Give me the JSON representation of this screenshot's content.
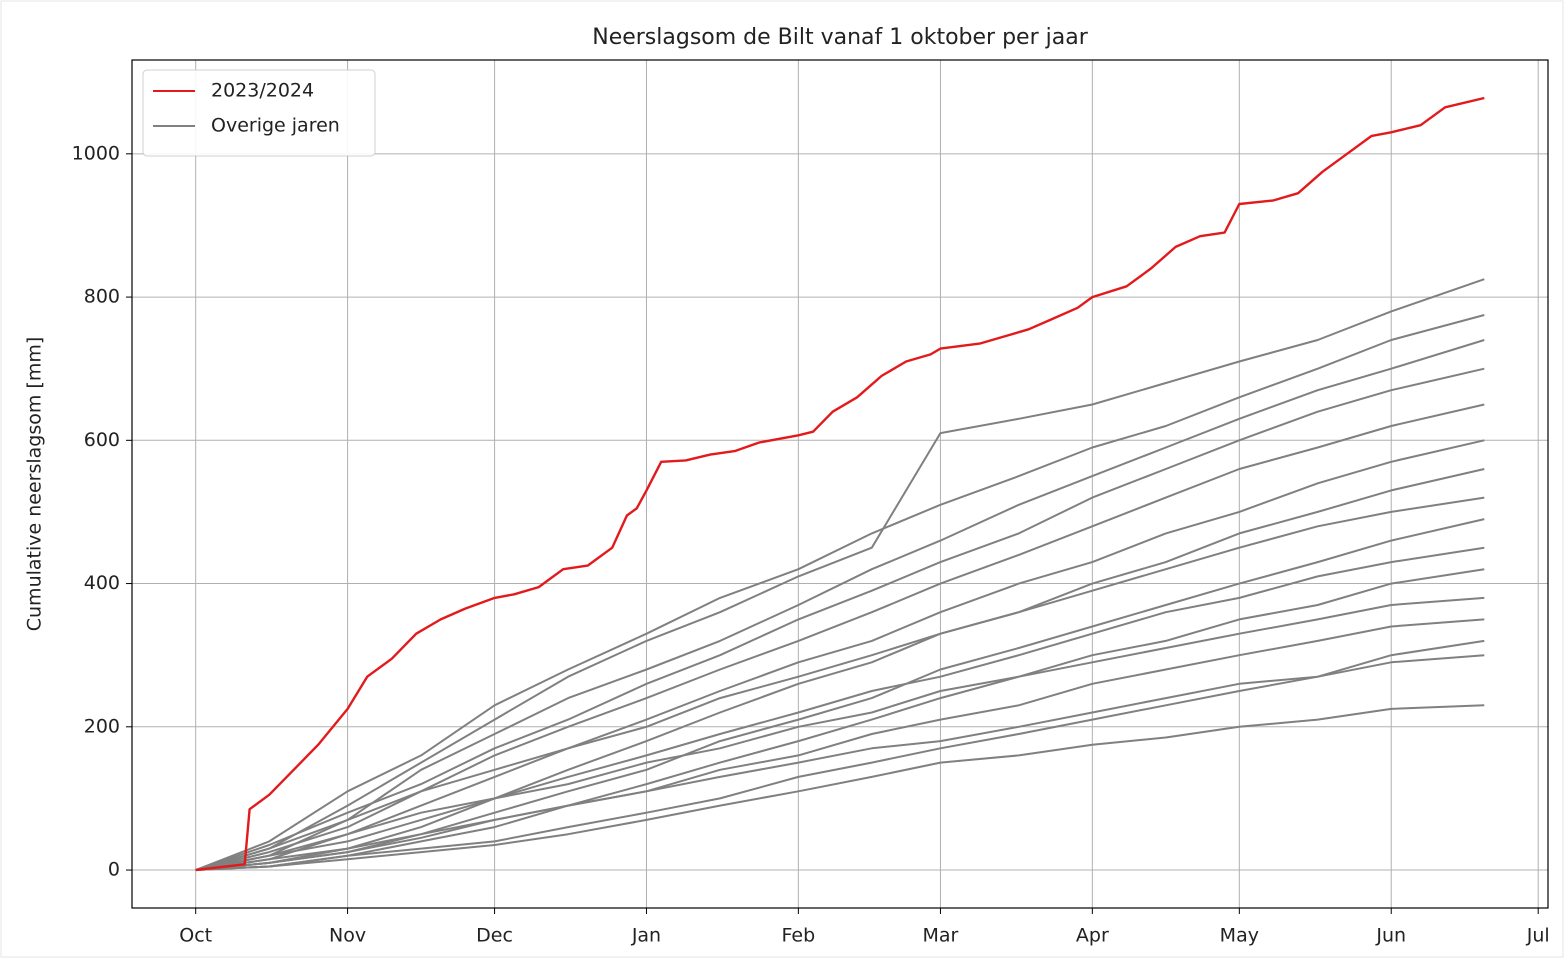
{
  "chart_data": {
    "type": "line",
    "title": "Neerslagsom de Bilt vanaf 1 oktober per jaar",
    "ylabel": "Cumulative neerslagsom [mm]",
    "xlim": [
      -13,
      276
    ],
    "ylim": [
      -53,
      1131
    ],
    "xticks": [
      {
        "value": 0,
        "label": "Oct"
      },
      {
        "value": 31,
        "label": "Nov"
      },
      {
        "value": 61,
        "label": "Dec"
      },
      {
        "value": 92,
        "label": "Jan"
      },
      {
        "value": 123,
        "label": "Feb"
      },
      {
        "value": 152,
        "label": "Mar"
      },
      {
        "value": 183,
        "label": "Apr"
      },
      {
        "value": 213,
        "label": "May"
      },
      {
        "value": 244,
        "label": "Jun"
      },
      {
        "value": 274,
        "label": "Jul"
      }
    ],
    "yticks": [
      0,
      200,
      400,
      600,
      800,
      1000
    ],
    "grid": true,
    "legend": "upper left",
    "x": [
      0,
      15,
      31,
      46,
      61,
      76,
      92,
      107,
      123,
      138,
      152,
      168,
      183,
      198,
      213,
      229,
      244,
      263
    ],
    "series": [
      {
        "name": "2023/2024",
        "color": "#e31a1c",
        "x": [
          0,
          10,
          11,
          15,
          20,
          25,
          31,
          35,
          40,
          45,
          50,
          55,
          61,
          65,
          70,
          75,
          80,
          85,
          88,
          90,
          92,
          95,
          100,
          105,
          110,
          115,
          123,
          126,
          130,
          135,
          140,
          145,
          150,
          152,
          160,
          165,
          170,
          175,
          180,
          183,
          190,
          195,
          200,
          205,
          210,
          213,
          220,
          225,
          230,
          235,
          240,
          244,
          250,
          255,
          263
        ],
        "values": [
          0,
          8,
          85,
          105,
          140,
          175,
          225,
          270,
          295,
          330,
          350,
          365,
          380,
          385,
          395,
          420,
          425,
          450,
          495,
          505,
          530,
          570,
          572,
          580,
          585,
          597,
          607,
          612,
          640,
          660,
          690,
          710,
          720,
          728,
          735,
          745,
          755,
          770,
          785,
          800,
          815,
          840,
          870,
          885,
          890,
          930,
          935,
          945,
          975,
          1000,
          1025,
          1030,
          1040,
          1065,
          1078
        ]
      },
      {
        "name": "Overige jaren",
        "color": "#808080",
        "values": [
          0,
          30,
          90,
          150,
          210,
          270,
          320,
          360,
          410,
          450,
          610,
          630,
          650,
          680,
          710,
          740,
          780,
          825
        ]
      },
      {
        "name": "Overige jaren",
        "color": "#808080",
        "values": [
          0,
          40,
          110,
          160,
          230,
          280,
          330,
          380,
          420,
          470,
          510,
          550,
          590,
          620,
          660,
          700,
          740,
          775
        ]
      },
      {
        "name": "Overige jaren",
        "color": "#808080",
        "values": [
          0,
          20,
          70,
          140,
          190,
          240,
          280,
          320,
          370,
          420,
          460,
          510,
          550,
          590,
          630,
          670,
          700,
          740
        ]
      },
      {
        "name": "Overige jaren",
        "color": "#808080",
        "values": [
          0,
          35,
          80,
          120,
          170,
          210,
          260,
          300,
          350,
          390,
          430,
          470,
          520,
          560,
          600,
          640,
          670,
          700
        ]
      },
      {
        "name": "Overige jaren",
        "color": "#808080",
        "values": [
          0,
          25,
          60,
          110,
          160,
          200,
          240,
          280,
          320,
          360,
          400,
          440,
          480,
          520,
          560,
          590,
          620,
          650
        ]
      },
      {
        "name": "Overige jaren",
        "color": "#808080",
        "values": [
          0,
          15,
          50,
          90,
          130,
          170,
          210,
          250,
          290,
          320,
          360,
          400,
          430,
          470,
          500,
          540,
          570,
          600
        ]
      },
      {
        "name": "Overige jaren",
        "color": "#808080",
        "values": [
          0,
          10,
          30,
          60,
          100,
          140,
          180,
          220,
          260,
          290,
          330,
          360,
          400,
          430,
          470,
          500,
          530,
          560
        ]
      },
      {
        "name": "Overige jaren",
        "color": "#808080",
        "values": [
          0,
          30,
          70,
          110,
          140,
          170,
          200,
          240,
          270,
          300,
          330,
          360,
          390,
          420,
          450,
          480,
          500,
          520
        ]
      },
      {
        "name": "Overige jaren",
        "color": "#808080",
        "values": [
          0,
          10,
          25,
          50,
          80,
          110,
          140,
          180,
          210,
          240,
          280,
          310,
          340,
          370,
          400,
          430,
          460,
          490
        ]
      },
      {
        "name": "Overige jaren",
        "color": "#808080",
        "values": [
          0,
          20,
          40,
          70,
          100,
          130,
          160,
          190,
          220,
          250,
          270,
          300,
          330,
          360,
          380,
          410,
          430,
          450
        ]
      },
      {
        "name": "Overige jaren",
        "color": "#808080",
        "values": [
          0,
          5,
          20,
          40,
          60,
          90,
          120,
          150,
          180,
          210,
          240,
          270,
          300,
          320,
          350,
          370,
          400,
          420
        ]
      },
      {
        "name": "Overige jaren",
        "color": "#808080",
        "values": [
          0,
          20,
          50,
          80,
          100,
          120,
          150,
          170,
          200,
          220,
          250,
          270,
          290,
          310,
          330,
          350,
          370,
          380
        ]
      },
      {
        "name": "Overige jaren",
        "color": "#808080",
        "values": [
          0,
          10,
          25,
          45,
          70,
          90,
          110,
          140,
          160,
          190,
          210,
          230,
          260,
          280,
          300,
          320,
          340,
          350
        ]
      },
      {
        "name": "Overige jaren",
        "color": "#808080",
        "values": [
          0,
          5,
          20,
          30,
          40,
          60,
          80,
          100,
          130,
          150,
          170,
          190,
          210,
          230,
          250,
          270,
          300,
          320
        ]
      },
      {
        "name": "Overige jaren",
        "color": "#808080",
        "values": [
          0,
          15,
          30,
          50,
          70,
          90,
          110,
          130,
          150,
          170,
          180,
          200,
          220,
          240,
          260,
          270,
          290,
          300
        ]
      },
      {
        "name": "Overige jaren",
        "color": "#808080",
        "values": [
          0,
          5,
          15,
          25,
          35,
          50,
          70,
          90,
          110,
          130,
          150,
          160,
          175,
          185,
          200,
          210,
          225,
          230
        ]
      }
    ]
  }
}
